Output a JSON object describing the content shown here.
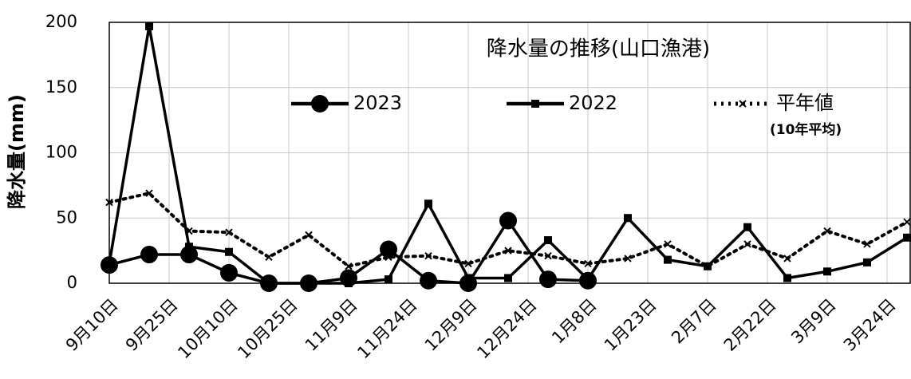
{
  "chart_data": {
    "type": "line",
    "title": "降水量の推移(山口漁港)",
    "y_label": "降水量(mm)",
    "legend_note": "(10年平均)",
    "x": [
      0,
      10,
      20,
      30,
      40,
      50,
      60,
      70,
      80,
      90,
      100,
      110,
      120,
      130,
      140,
      150,
      160,
      170,
      180,
      190,
      200
    ],
    "xlim": [
      0,
      201
    ],
    "xticks": [
      {
        "value": 0,
        "label": "9月10日"
      },
      {
        "value": 15,
        "label": "9月25日"
      },
      {
        "value": 30,
        "label": "10月10日"
      },
      {
        "value": 45,
        "label": "10月25日"
      },
      {
        "value": 60,
        "label": "11月9日"
      },
      {
        "value": 75,
        "label": "11月24日"
      },
      {
        "value": 90,
        "label": "12月9日"
      },
      {
        "value": 105,
        "label": "12月24日"
      },
      {
        "value": 120,
        "label": "1月8日"
      },
      {
        "value": 135,
        "label": "1月23日"
      },
      {
        "value": 150,
        "label": "2月7日"
      },
      {
        "value": 165,
        "label": "2月22日"
      },
      {
        "value": 180,
        "label": "3月9日"
      },
      {
        "value": 195,
        "label": "3月24日"
      }
    ],
    "ylim": [
      0,
      200
    ],
    "yticks": [
      0,
      50,
      100,
      150,
      200
    ],
    "grid": true,
    "series": [
      {
        "name": "2023",
        "color": "#000000",
        "marker": "circle",
        "dash": "solid",
        "values": [
          14,
          22,
          22,
          8,
          0,
          0,
          4,
          26,
          2,
          0,
          48,
          3,
          2,
          null,
          null,
          null,
          null,
          null,
          null,
          null,
          null
        ]
      },
      {
        "name": "2022",
        "color": "#000000",
        "marker": "square",
        "dash": "solid",
        "values": [
          15,
          197,
          28,
          24,
          0,
          0,
          0,
          3,
          61,
          4,
          4,
          33,
          3,
          50,
          18,
          13,
          43,
          4,
          9,
          16,
          35
        ]
      },
      {
        "name": "平年値",
        "color": "#000000",
        "marker": "x",
        "dash": "dotted",
        "values": [
          62,
          69,
          40,
          39,
          20,
          37,
          13,
          20,
          21,
          15,
          25,
          21,
          15,
          19,
          30,
          13,
          30,
          19,
          40,
          30,
          47
        ]
      }
    ]
  }
}
